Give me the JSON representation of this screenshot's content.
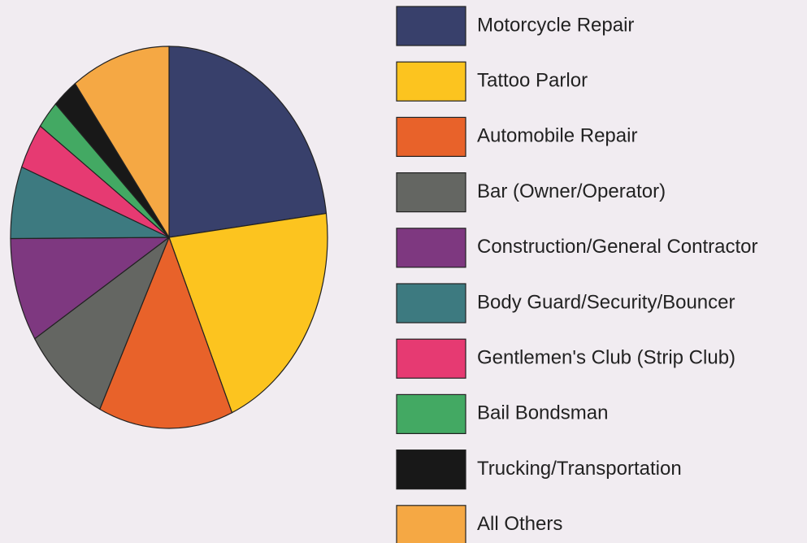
{
  "chart_data": {
    "type": "pie",
    "categories": [
      "Motorcycle Repair",
      "Tattoo Parlor",
      "Automobile Repair",
      "Bar (Owner/Operator)",
      "Construction/General Contractor",
      "Body Guard/Security/Bouncer",
      "Gentlemen's Club (Strip Club)",
      "Bail Bondsman",
      "Trucking/Transportation",
      "All Others"
    ],
    "values": [
      23,
      20.5,
      13.7,
      8.9,
      8.8,
      6.1,
      3.9,
      2.4,
      2.6,
      10.1
    ],
    "colors": [
      "#38406b",
      "#fcc41f",
      "#e8622a",
      "#646662",
      "#7e3880",
      "#3d7a80",
      "#e63a72",
      "#43a963",
      "#181818",
      "#f5a844"
    ],
    "legend": "right"
  }
}
